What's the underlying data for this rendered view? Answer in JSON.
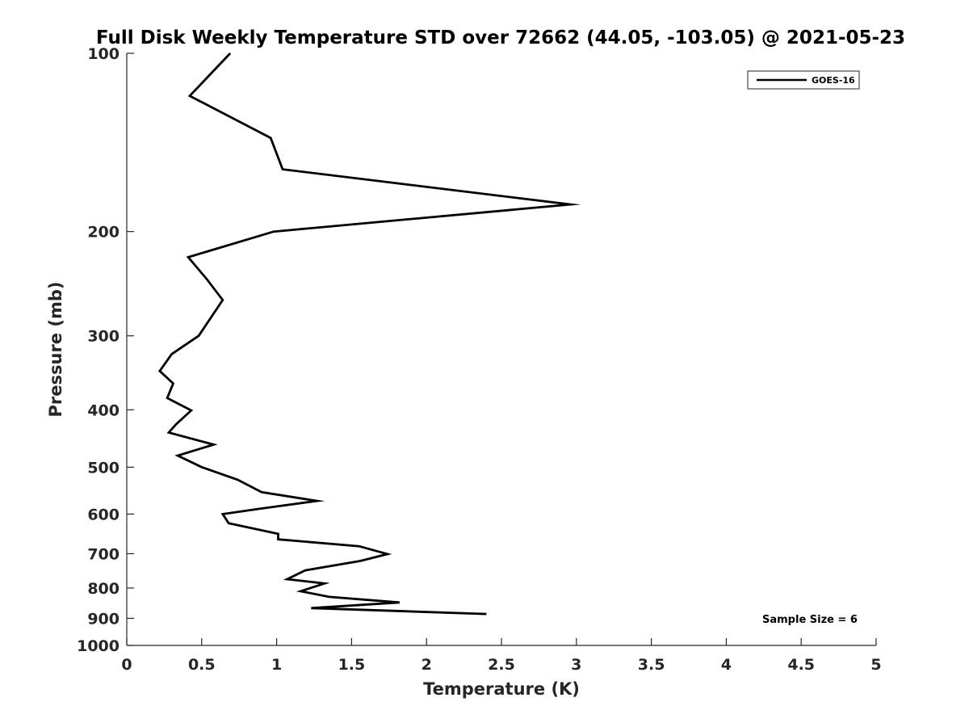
{
  "chart_data": {
    "type": "line",
    "title": "Full Disk Weekly Temperature STD over 72662 (44.05, -103.05) @ 2021-05-23",
    "xlabel": "Temperature (K)",
    "ylabel": "Pressure (mb)",
    "xlim": [
      0,
      5
    ],
    "ylim": [
      100,
      1000
    ],
    "yscale": "log",
    "y_reversed": true,
    "grid": false,
    "legend_position": "top-right",
    "x_ticks": [
      0,
      0.5,
      1,
      1.5,
      2,
      2.5,
      3,
      3.5,
      4,
      4.5,
      5
    ],
    "x_tick_labels": [
      "0",
      "0.5",
      "1",
      "1.5",
      "2",
      "2.5",
      "3",
      "3.5",
      "4",
      "4.5",
      "5"
    ],
    "y_ticks": [
      100,
      200,
      300,
      400,
      500,
      600,
      700,
      800,
      900,
      1000
    ],
    "y_tick_labels": [
      "100",
      "200",
      "300",
      "400",
      "500",
      "600",
      "700",
      "800",
      "900",
      "1000"
    ],
    "annotation": "Sample Size = 6",
    "series": [
      {
        "name": "GOES-16",
        "color": "#000000",
        "points": [
          {
            "temp": 0.69,
            "pressure": 100
          },
          {
            "temp": 0.42,
            "pressure": 118
          },
          {
            "temp": 0.96,
            "pressure": 139
          },
          {
            "temp": 1.04,
            "pressure": 157
          },
          {
            "temp": 2.96,
            "pressure": 180
          },
          {
            "temp": 0.98,
            "pressure": 200
          },
          {
            "temp": 0.41,
            "pressure": 221
          },
          {
            "temp": 0.53,
            "pressure": 240
          },
          {
            "temp": 0.64,
            "pressure": 261
          },
          {
            "temp": 0.48,
            "pressure": 300
          },
          {
            "temp": 0.3,
            "pressure": 322
          },
          {
            "temp": 0.22,
            "pressure": 344
          },
          {
            "temp": 0.31,
            "pressure": 361
          },
          {
            "temp": 0.27,
            "pressure": 382
          },
          {
            "temp": 0.43,
            "pressure": 401
          },
          {
            "temp": 0.33,
            "pressure": 423
          },
          {
            "temp": 0.28,
            "pressure": 437
          },
          {
            "temp": 0.58,
            "pressure": 458
          },
          {
            "temp": 0.34,
            "pressure": 478
          },
          {
            "temp": 0.5,
            "pressure": 500
          },
          {
            "temp": 0.74,
            "pressure": 525
          },
          {
            "temp": 0.9,
            "pressure": 551
          },
          {
            "temp": 1.27,
            "pressure": 570
          },
          {
            "temp": 0.88,
            "pressure": 588
          },
          {
            "temp": 0.64,
            "pressure": 600
          },
          {
            "temp": 0.68,
            "pressure": 622
          },
          {
            "temp": 1.01,
            "pressure": 648
          },
          {
            "temp": 1.01,
            "pressure": 662
          },
          {
            "temp": 1.55,
            "pressure": 680
          },
          {
            "temp": 1.74,
            "pressure": 701
          },
          {
            "temp": 1.56,
            "pressure": 720
          },
          {
            "temp": 1.19,
            "pressure": 747
          },
          {
            "temp": 1.07,
            "pressure": 773
          },
          {
            "temp": 1.32,
            "pressure": 786
          },
          {
            "temp": 1.16,
            "pressure": 810
          },
          {
            "temp": 1.35,
            "pressure": 828
          },
          {
            "temp": 1.82,
            "pressure": 846
          },
          {
            "temp": 1.23,
            "pressure": 865
          },
          {
            "temp": 2.4,
            "pressure": 885
          }
        ]
      }
    ]
  }
}
